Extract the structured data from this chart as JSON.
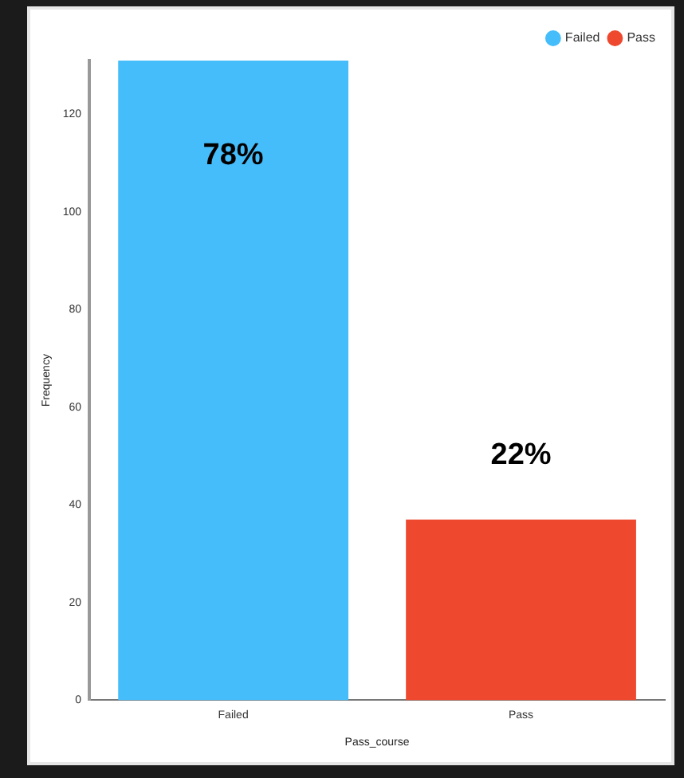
{
  "chart_data": {
    "type": "bar",
    "xlabel": "Pass_course",
    "ylabel": "Frequency",
    "categories": [
      "Failed",
      "Pass"
    ],
    "series": [
      {
        "name": "Failed",
        "color": "#45bdfb",
        "values": [
          131,
          null
        ]
      },
      {
        "name": "Pass",
        "color": "#ee482e",
        "values": [
          null,
          37
        ]
      }
    ],
    "annotations": [
      {
        "text": "78%",
        "x": "Failed",
        "y": 131
      },
      {
        "text": "22%",
        "x": "Pass",
        "y": 37
      }
    ],
    "ylim": [
      0,
      131
    ],
    "yticks": [
      0,
      20,
      40,
      60,
      80,
      100,
      120
    ],
    "grid": false,
    "legend": "top right"
  }
}
